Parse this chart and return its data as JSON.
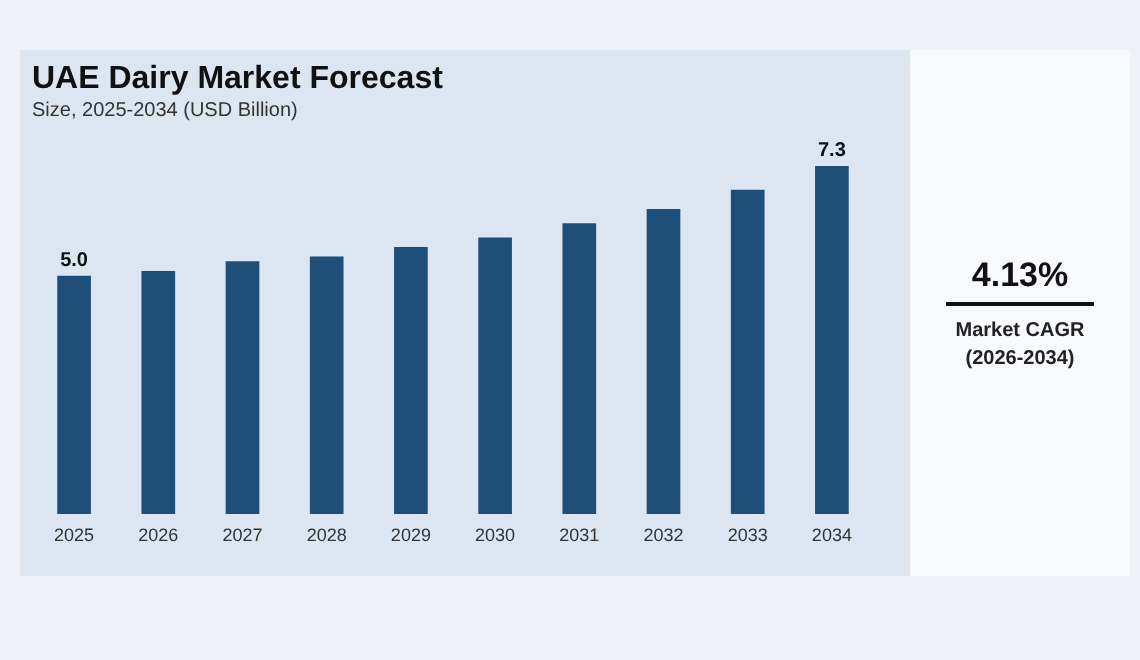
{
  "chart_data": {
    "type": "bar",
    "title": "UAE Dairy Market Forecast",
    "subtitle": "Size, 2025-2034 (USD Billion)",
    "categories": [
      "2025",
      "2026",
      "2027",
      "2028",
      "2029",
      "2030",
      "2031",
      "2032",
      "2033",
      "2034"
    ],
    "values": [
      5.0,
      5.1,
      5.3,
      5.4,
      5.6,
      5.8,
      6.1,
      6.4,
      6.8,
      7.3
    ],
    "value_labels": [
      "5.0",
      null,
      null,
      null,
      null,
      null,
      null,
      null,
      null,
      "7.3"
    ],
    "color": "#1f4e79",
    "tick_labels": "x",
    "annotations": [
      "4.13%",
      "Market CAGR (2026-2034)"
    ]
  }
}
